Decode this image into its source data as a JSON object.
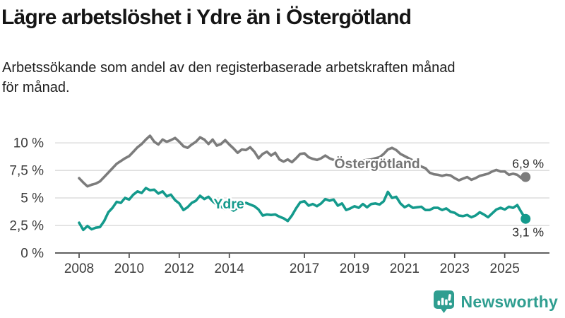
{
  "title": "Lägre arbetslöshet i Ydre än i Östergötland",
  "subtitle": "Arbetssökande som andel av den registerbaserade arbetskraften månad för månad.",
  "subtitle_lines": [
    "Arbetssökande som andel av den registerbaserade arbetskraften månad",
    "för månad."
  ],
  "branding": {
    "name": "Newsworthy"
  },
  "colors": {
    "background": "#ffffff",
    "title_text": "#151515",
    "subtitle_text": "#1f1f1f",
    "axis": "#4a4a4a",
    "axis_tick_labels": "#3c3c3c",
    "gridline": "#d9d9d9",
    "annotation_text": "#2b2b2b",
    "series_ostergotland": "#7c7c7c",
    "series_ydre": "#149a8c",
    "brand_teal": "#2f9e90"
  },
  "chart_data": {
    "type": "line",
    "title": "Lägre arbetslöshet i Ydre än i Östergötland",
    "xlabel": "",
    "ylabel": "",
    "unit": "%",
    "grid": true,
    "legend": "inline-labels",
    "x_axis": {
      "range_years": [
        2008,
        2026.8
      ],
      "ticks": [
        2008,
        2010,
        2012,
        2014,
        2017,
        2019,
        2021,
        2023,
        2025
      ],
      "tick_labels": [
        "2008",
        "2010",
        "2012",
        "2014",
        "2017",
        "2019",
        "2021",
        "2023",
        "2025"
      ]
    },
    "y_axis": {
      "range": [
        0,
        11.2
      ],
      "tick_values": [
        0,
        2.5,
        5,
        7.5,
        10
      ],
      "tick_labels": [
        "0 %",
        "2,5 %",
        "5 %",
        "7,5 %",
        "10 %"
      ]
    },
    "series": [
      {
        "name": "Östergötland",
        "color": "#7c7c7c",
        "label_color": "#757575",
        "start_year": 2008.0,
        "step_years": 0.16667,
        "end_value": 6.9,
        "end_label": "6,9 %",
        "values": [
          6.8,
          6.4,
          6.05,
          6.2,
          6.3,
          6.5,
          6.9,
          7.3,
          7.7,
          8.1,
          8.35,
          8.6,
          8.8,
          9.2,
          9.6,
          9.9,
          10.3,
          10.65,
          10.1,
          9.85,
          10.3,
          10.1,
          10.25,
          10.45,
          10.1,
          9.7,
          9.55,
          9.85,
          10.1,
          10.5,
          10.3,
          9.9,
          10.3,
          9.75,
          9.9,
          10.25,
          9.85,
          9.5,
          9.1,
          9.4,
          9.35,
          9.6,
          9.2,
          8.6,
          9.0,
          9.2,
          8.85,
          9.1,
          8.5,
          8.3,
          8.5,
          8.25,
          8.6,
          9.0,
          9.05,
          8.7,
          8.55,
          8.45,
          8.6,
          8.85,
          8.6,
          8.45,
          8.35,
          8.3,
          8.25,
          8.2,
          8.25,
          8.3,
          8.4,
          8.45,
          8.5,
          8.6,
          8.7,
          9.0,
          9.4,
          9.55,
          9.35,
          9.0,
          8.8,
          8.6,
          8.4,
          8.1,
          7.85,
          7.7,
          7.3,
          7.15,
          7.1,
          7.0,
          7.1,
          7.05,
          6.8,
          6.6,
          6.75,
          6.9,
          6.65,
          6.8,
          7.0,
          7.1,
          7.2,
          7.4,
          7.55,
          7.4,
          7.4,
          7.1,
          7.2,
          7.1,
          6.8,
          6.9
        ]
      },
      {
        "name": "Ydre",
        "color": "#149a8c",
        "label_color": "#149a8c",
        "start_year": 2008.0,
        "step_years": 0.16667,
        "end_value": 3.1,
        "end_label": "3,1 %",
        "values": [
          2.75,
          2.1,
          2.45,
          2.15,
          2.3,
          2.35,
          2.9,
          3.7,
          4.1,
          4.65,
          4.55,
          5.0,
          4.85,
          5.3,
          5.6,
          5.45,
          5.9,
          5.7,
          5.75,
          5.4,
          5.6,
          5.15,
          5.3,
          4.8,
          4.5,
          3.9,
          4.15,
          4.55,
          4.75,
          5.2,
          4.9,
          5.1,
          4.7,
          4.4,
          4.2,
          4.0,
          4.1,
          3.85,
          4.1,
          4.35,
          4.55,
          4.4,
          4.25,
          3.95,
          3.4,
          3.5,
          3.45,
          3.5,
          3.3,
          3.15,
          2.9,
          3.4,
          4.05,
          4.6,
          4.7,
          4.3,
          4.45,
          4.25,
          4.5,
          4.9,
          4.75,
          4.85,
          4.3,
          4.5,
          3.9,
          4.05,
          4.25,
          4.1,
          4.45,
          4.15,
          4.45,
          4.5,
          4.4,
          4.7,
          5.55,
          5.0,
          5.1,
          4.5,
          4.15,
          4.35,
          4.1,
          4.15,
          4.2,
          3.9,
          3.9,
          4.1,
          4.1,
          3.9,
          4.05,
          3.75,
          3.65,
          3.4,
          3.35,
          3.45,
          3.25,
          3.4,
          3.7,
          3.5,
          3.25,
          3.6,
          3.95,
          4.1,
          3.95,
          4.2,
          4.1,
          4.35,
          3.7,
          3.1
        ]
      }
    ]
  }
}
